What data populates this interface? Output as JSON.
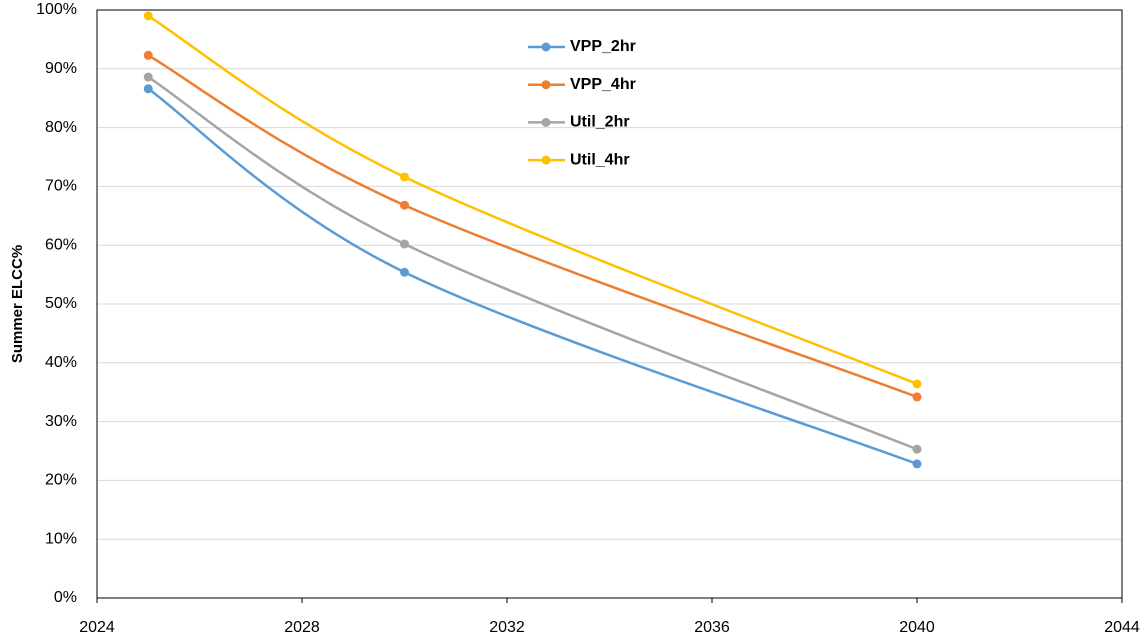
{
  "chart_data": {
    "type": "line",
    "y_label": "Summer ELCC%",
    "x": [
      2025,
      2030,
      2040
    ],
    "series": [
      {
        "name": "VPP_2hr",
        "color": "#5b9bd5",
        "values": [
          86.6,
          55.4,
          22.8
        ]
      },
      {
        "name": "VPP_4hr",
        "color": "#ed7d31",
        "values": [
          92.3,
          66.8,
          34.2
        ]
      },
      {
        "name": "Util_2hr",
        "color": "#a5a5a5",
        "values": [
          88.6,
          60.2,
          25.3
        ]
      },
      {
        "name": "Util_4hr",
        "color": "#ffc000",
        "values": [
          99,
          71.6,
          36.4
        ]
      }
    ],
    "xlim": [
      2024,
      2044
    ],
    "xticks": [
      2024,
      2028,
      2032,
      2036,
      2040,
      2044
    ],
    "ylim": [
      0,
      100
    ],
    "yticks": [
      {
        "value": 0,
        "label": "0%"
      },
      {
        "value": 10,
        "label": "10%"
      },
      {
        "value": 20,
        "label": "20%"
      },
      {
        "value": 30,
        "label": "30%"
      },
      {
        "value": 40,
        "label": "40%"
      },
      {
        "value": 50,
        "label": "50%"
      },
      {
        "value": 60,
        "label": "60%"
      },
      {
        "value": 70,
        "label": "70%"
      },
      {
        "value": 80,
        "label": "80%"
      },
      {
        "value": 90,
        "label": "90%"
      },
      {
        "value": 100,
        "label": "100%"
      }
    ],
    "grid": true,
    "smooth": true,
    "legend": "top"
  }
}
